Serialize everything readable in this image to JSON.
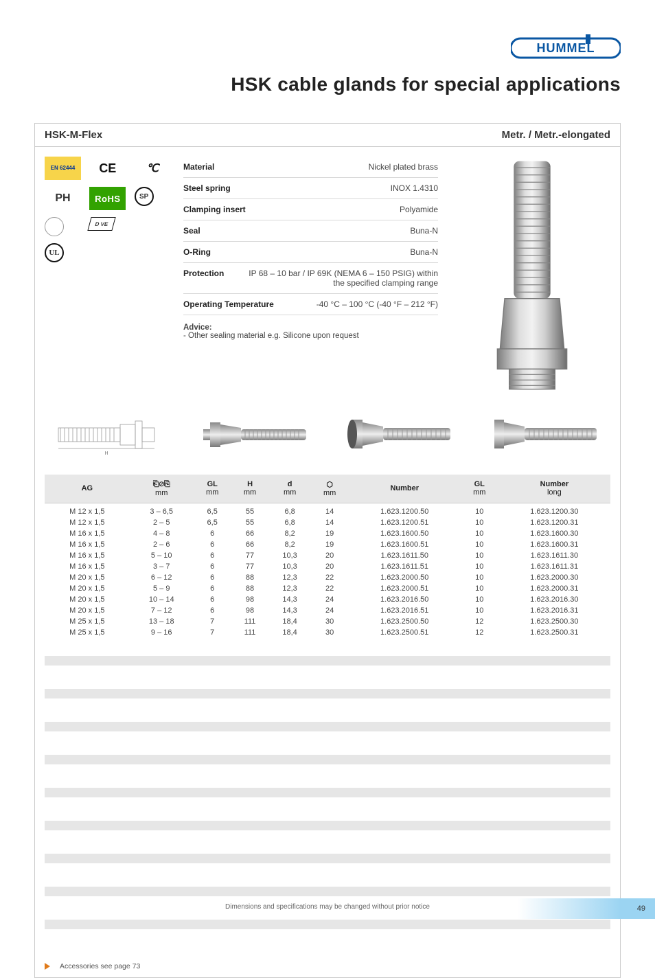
{
  "brand": "HUMMEL",
  "page_title": "HSK cable glands for special applications",
  "card_header_left": "HSK-M-Flex",
  "card_header_right": "Metr. / Metr.-elongated",
  "certs": {
    "en": "EN 62444",
    "ce": "CE",
    "csa": "SP",
    "ru": "РН",
    "rohs": "RoHS",
    "sp": "SP",
    "circ": " ",
    "dve": "D VE",
    "ul": "UL"
  },
  "specs": [
    {
      "label": "Material",
      "value": "Nickel plated brass"
    },
    {
      "label": "Steel spring",
      "value": "INOX 1.4310"
    },
    {
      "label": "Clamping insert",
      "value": "Polyamide"
    },
    {
      "label": "Seal",
      "value": "Buna-N"
    },
    {
      "label": "O-Ring",
      "value": "Buna-N"
    },
    {
      "label": "Protection",
      "value": "IP 68 – 10 bar / IP 69K (NEMA 6 – 150 PSIG) within the specified clamping range"
    },
    {
      "label": "Operating Temperature",
      "value": "-40 °C – 100 °C (-40 °F – 212 °F)"
    }
  ],
  "advice_label": "Advice:",
  "advice_text": "- Other sealing material e.g. Silicone upon request",
  "table": {
    "headers": [
      {
        "top": "AG",
        "sub": ""
      },
      {
        "top": "⌀",
        "sub": "mm",
        "icon": "clamp-range-icon"
      },
      {
        "top": "GL",
        "sub": "mm"
      },
      {
        "top": "H",
        "sub": "mm"
      },
      {
        "top": "d",
        "sub": "mm"
      },
      {
        "top": "⌀",
        "sub": "mm",
        "icon": "wrench-size-icon"
      },
      {
        "top": "Number",
        "sub": ""
      },
      {
        "top": "GL",
        "sub": "mm"
      },
      {
        "top": "Number",
        "sub": "long"
      }
    ],
    "rows": [
      [
        "M 12 x 1,5",
        "3 – 6,5",
        "6,5",
        "55",
        "6,8",
        "14",
        "1.623.1200.50",
        "10",
        "1.623.1200.30"
      ],
      [
        "M 12 x 1,5",
        "2 – 5",
        "6,5",
        "55",
        "6,8",
        "14",
        "1.623.1200.51",
        "10",
        "1.623.1200.31"
      ],
      [
        "M 16 x 1,5",
        "4 – 8",
        "6",
        "66",
        "8,2",
        "19",
        "1.623.1600.50",
        "10",
        "1.623.1600.30"
      ],
      [
        "M 16 x 1,5",
        "2 – 6",
        "6",
        "66",
        "8,2",
        "19",
        "1.623.1600.51",
        "10",
        "1.623.1600.31"
      ],
      [
        "M 16 x 1,5",
        "5 – 10",
        "6",
        "77",
        "10,3",
        "20",
        "1.623.1611.50",
        "10",
        "1.623.1611.30"
      ],
      [
        "M 16 x 1,5",
        "3 – 7",
        "6",
        "77",
        "10,3",
        "20",
        "1.623.1611.51",
        "10",
        "1.623.1611.31"
      ],
      [
        "M 20 x 1,5",
        "6 – 12",
        "6",
        "88",
        "12,3",
        "22",
        "1.623.2000.50",
        "10",
        "1.623.2000.30"
      ],
      [
        "M 20 x 1,5",
        "5 – 9",
        "6",
        "88",
        "12,3",
        "22",
        "1.623.2000.51",
        "10",
        "1.623.2000.31"
      ],
      [
        "M 20 x 1,5",
        "10 – 14",
        "6",
        "98",
        "14,3",
        "24",
        "1.623.2016.50",
        "10",
        "1.623.2016.30"
      ],
      [
        "M 20 x 1,5",
        "7 – 12",
        "6",
        "98",
        "14,3",
        "24",
        "1.623.2016.51",
        "10",
        "1.623.2016.31"
      ],
      [
        "M 25 x 1,5",
        "13 – 18",
        "7",
        "111",
        "18,4",
        "30",
        "1.623.2500.50",
        "12",
        "1.623.2500.30"
      ],
      [
        "M 25 x 1,5",
        "9 – 16",
        "7",
        "111",
        "18,4",
        "30",
        "1.623.2500.51",
        "12",
        "1.623.2500.31"
      ]
    ]
  },
  "empty_stripe_count": 18,
  "foot_link": "Accessories see page 73",
  "footer_note": "Dimensions and specifications may be changed without prior notice",
  "page_number": "49",
  "colors": {
    "accent_blue": "#0a57a3",
    "rohs_green": "#32a200",
    "en_yellow": "#f7d44a",
    "stripe_grey": "#e6e6e6",
    "border_grey": "#c9c9c9",
    "page_bar": "#9bd4f2",
    "arrow_orange": "#e07a1a"
  },
  "product_image_alt": "HSK-M-Flex nickel plated brass cable gland with spiral bend protection",
  "thumb_alts": [
    "Dimensional drawing",
    "Side view 1",
    "Side view 2",
    "Side view 3"
  ]
}
